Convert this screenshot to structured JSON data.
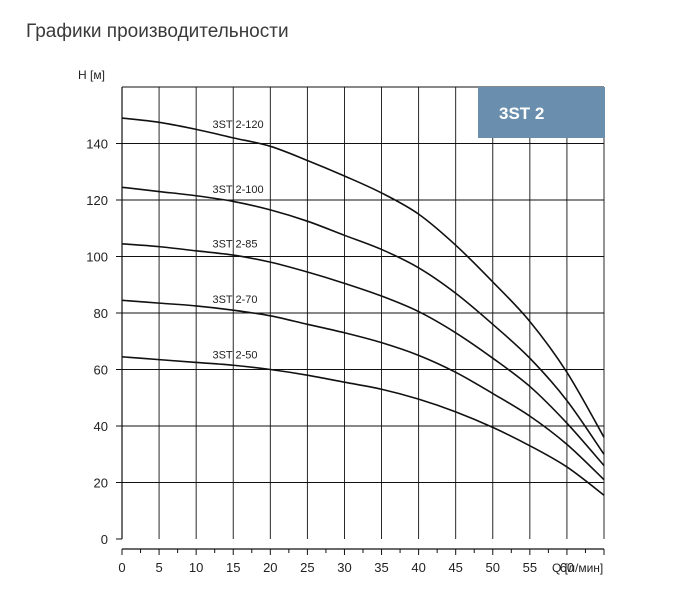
{
  "page": {
    "title": "Графики производительности"
  },
  "colors": {
    "badge_bg": "#6a8fae",
    "curve": "#111111",
    "grid": "#111111"
  },
  "chart_data": {
    "type": "line",
    "title": "",
    "badge": "3ST 2",
    "ylabel": "H [м]",
    "xlabel": "Q [л/мин]",
    "xlim": [
      0,
      65
    ],
    "ylim": [
      0,
      160
    ],
    "x_ticks": [
      0,
      5,
      10,
      15,
      20,
      25,
      30,
      35,
      40,
      45,
      50,
      55,
      60
    ],
    "y_ticks": [
      0,
      20,
      40,
      60,
      80,
      100,
      120,
      140
    ],
    "grid": true,
    "series": [
      {
        "name": "3ST 2-120",
        "x": [
          0,
          5,
          10,
          15,
          20,
          25,
          30,
          35,
          40,
          45,
          50,
          55,
          60,
          65
        ],
        "y": [
          149,
          147.5,
          145,
          142,
          139,
          134,
          128.5,
          122.5,
          115,
          104,
          91,
          77,
          59,
          36
        ]
      },
      {
        "name": "3ST 2-100",
        "x": [
          0,
          5,
          10,
          15,
          20,
          25,
          30,
          35,
          40,
          45,
          50,
          55,
          60,
          65
        ],
        "y": [
          124.5,
          123,
          121.5,
          119.5,
          116.5,
          112.5,
          107.5,
          102.5,
          96,
          87,
          76,
          64,
          49,
          30
        ]
      },
      {
        "name": "3ST 2-85",
        "x": [
          0,
          5,
          10,
          15,
          20,
          25,
          30,
          35,
          40,
          45,
          50,
          55,
          60,
          65
        ],
        "y": [
          104.5,
          103.5,
          102,
          100.5,
          98,
          94.5,
          90.5,
          86,
          80.5,
          73,
          64,
          54,
          41,
          26
        ]
      },
      {
        "name": "3ST 2-70",
        "x": [
          0,
          5,
          10,
          15,
          20,
          25,
          30,
          35,
          40,
          45,
          50,
          55,
          60,
          65
        ],
        "y": [
          84.5,
          83.5,
          82.5,
          81,
          79,
          76,
          73,
          69.5,
          65,
          59,
          51.5,
          43.5,
          33.5,
          21
        ]
      },
      {
        "name": "3ST 2-50",
        "x": [
          0,
          5,
          10,
          15,
          20,
          25,
          30,
          35,
          40,
          45,
          50,
          55,
          60,
          65
        ],
        "y": [
          64.5,
          63.5,
          62.5,
          61.5,
          60,
          58,
          55.5,
          53,
          49.5,
          45,
          39.5,
          33,
          25.5,
          15.5
        ]
      }
    ]
  }
}
